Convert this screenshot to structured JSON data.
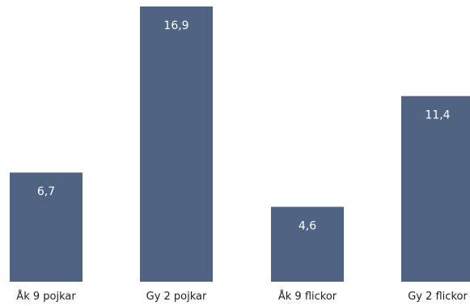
{
  "chart_data": {
    "type": "bar",
    "categories": [
      "Åk 9 pojkar",
      "Gy 2 pojkar",
      "Åk 9 flickor",
      "Gy 2 flickor"
    ],
    "values": [
      6.7,
      16.9,
      4.6,
      11.4
    ],
    "value_labels": [
      "6,7",
      "16,9",
      "4,6",
      "11,4"
    ],
    "title": "",
    "xlabel": "",
    "ylabel": "",
    "ylim": [
      0,
      16.9
    ],
    "grid": false,
    "legend": "none",
    "bar_color": "#4f6382"
  }
}
